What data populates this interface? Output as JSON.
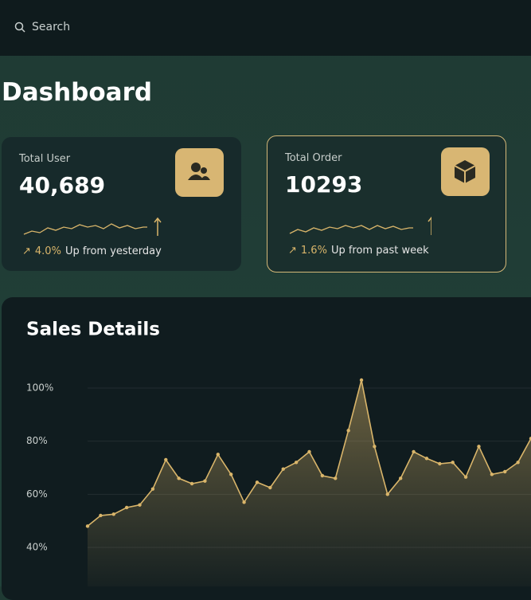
{
  "search": "Search",
  "title": "Dashboard",
  "cards": [
    {
      "label": "Total User",
      "value": "40,689",
      "change": "4.0%",
      "note": "Up from yesterday"
    },
    {
      "label": "Total Order",
      "value": "10293",
      "change": "1.6%",
      "note": "Up from past week"
    }
  ],
  "chart_data": {
    "type": "line",
    "title": "Sales Details",
    "values": [
      48,
      52,
      52.5,
      55,
      56,
      62,
      73,
      66,
      64,
      65,
      75,
      67.5,
      57,
      64.5,
      62.5,
      69.5,
      72,
      76,
      67,
      66,
      84,
      103,
      78,
      60,
      66,
      76,
      73.5,
      71.5,
      72,
      66.5,
      78,
      67.5,
      68.5,
      72,
      81
    ],
    "color": "#d9b56a",
    "ylim": [
      25,
      108
    ],
    "yticks": [
      {
        "value": 40,
        "label": "40%"
      },
      {
        "value": 60,
        "label": "60%"
      },
      {
        "value": 80,
        "label": "80%"
      },
      {
        "value": 100,
        "label": "100%"
      }
    ],
    "grid": true
  }
}
